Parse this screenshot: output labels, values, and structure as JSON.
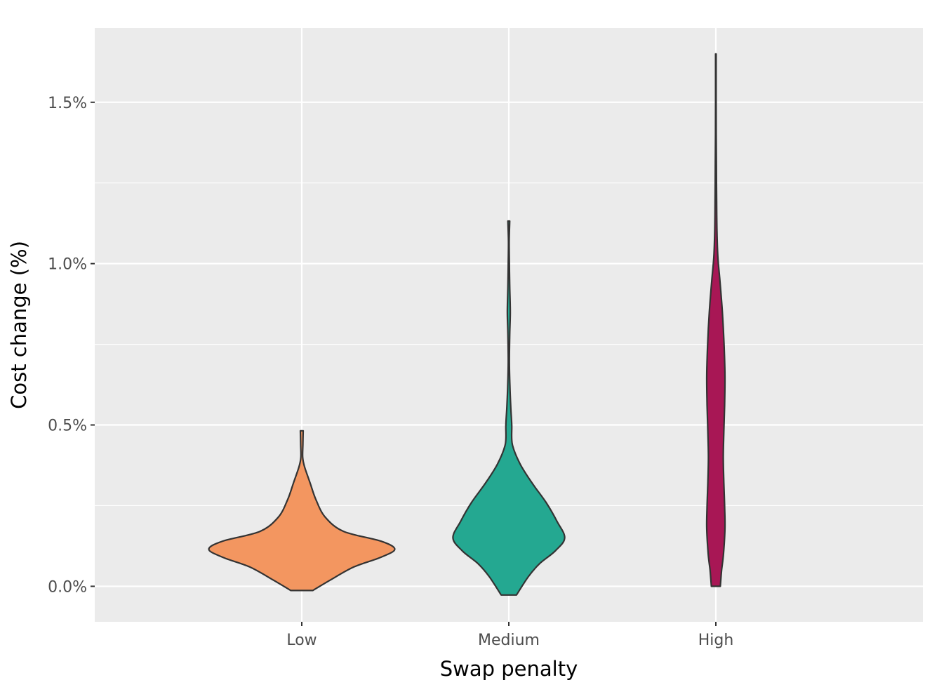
{
  "chart_data": {
    "type": "violin",
    "title": "",
    "xlabel": "Swap penalty",
    "ylabel": "Cost change (%)",
    "categories": [
      "Low",
      "Medium",
      "High"
    ],
    "y_ticks": [
      0.0,
      0.5,
      1.0,
      1.5
    ],
    "y_tick_labels": [
      "0.0%",
      "0.5%",
      "1.0%",
      "1.5%"
    ],
    "ylim": [
      -0.11,
      1.73
    ],
    "grid": true,
    "legend": "none",
    "panel_background": "#ebebeb",
    "series": [
      {
        "category": "Low",
        "color": "#f39660",
        "y_range": [
          -0.013,
          0.482
        ],
        "density_profile": [
          {
            "y": -0.013,
            "w": 0.118
          },
          {
            "y": 0.02,
            "w": 0.31
          },
          {
            "y": 0.06,
            "w": 0.56
          },
          {
            "y": 0.09,
            "w": 0.85
          },
          {
            "y": 0.115,
            "w": 0.998
          },
          {
            "y": 0.14,
            "w": 0.85
          },
          {
            "y": 0.17,
            "w": 0.45
          },
          {
            "y": 0.215,
            "w": 0.25
          },
          {
            "y": 0.27,
            "w": 0.15
          },
          {
            "y": 0.32,
            "w": 0.09
          },
          {
            "y": 0.37,
            "w": 0.03
          },
          {
            "y": 0.4,
            "w": 0.01
          },
          {
            "y": 0.44,
            "w": 0.012
          },
          {
            "y": 0.482,
            "w": 0.015
          }
        ]
      },
      {
        "category": "Medium",
        "color": "#24a891",
        "y_range": [
          -0.027,
          1.132
        ],
        "density_profile": [
          {
            "y": -0.027,
            "w": 0.082
          },
          {
            "y": 0.03,
            "w": 0.21
          },
          {
            "y": 0.07,
            "w": 0.33
          },
          {
            "y": 0.11,
            "w": 0.5
          },
          {
            "y": 0.15,
            "w": 0.6
          },
          {
            "y": 0.2,
            "w": 0.52
          },
          {
            "y": 0.26,
            "w": 0.4
          },
          {
            "y": 0.32,
            "w": 0.25
          },
          {
            "y": 0.38,
            "w": 0.12
          },
          {
            "y": 0.44,
            "w": 0.038
          },
          {
            "y": 0.5,
            "w": 0.032
          },
          {
            "y": 0.55,
            "w": 0.022
          },
          {
            "y": 0.62,
            "w": 0.012
          },
          {
            "y": 0.7,
            "w": 0.006
          },
          {
            "y": 0.78,
            "w": 0.01
          },
          {
            "y": 0.85,
            "w": 0.016
          },
          {
            "y": 0.93,
            "w": 0.01
          },
          {
            "y": 1.0,
            "w": 0.006
          },
          {
            "y": 1.07,
            "w": 0.004
          },
          {
            "y": 1.132,
            "w": 0.01
          }
        ]
      },
      {
        "category": "High",
        "color": "#a81755",
        "y_range": [
          0.0,
          1.65
        ],
        "density_profile": [
          {
            "y": 0.0,
            "w": 0.048
          },
          {
            "y": 0.05,
            "w": 0.062
          },
          {
            "y": 0.1,
            "w": 0.082
          },
          {
            "y": 0.18,
            "w": 0.098
          },
          {
            "y": 0.25,
            "w": 0.094
          },
          {
            "y": 0.32,
            "w": 0.086
          },
          {
            "y": 0.4,
            "w": 0.08
          },
          {
            "y": 0.48,
            "w": 0.086
          },
          {
            "y": 0.56,
            "w": 0.094
          },
          {
            "y": 0.65,
            "w": 0.098
          },
          {
            "y": 0.75,
            "w": 0.088
          },
          {
            "y": 0.85,
            "w": 0.07
          },
          {
            "y": 0.95,
            "w": 0.043
          },
          {
            "y": 1.02,
            "w": 0.022
          },
          {
            "y": 1.1,
            "w": 0.012
          },
          {
            "y": 1.2,
            "w": 0.008
          },
          {
            "y": 1.3,
            "w": 0.006
          },
          {
            "y": 1.4,
            "w": 0.004
          },
          {
            "y": 1.5,
            "w": 0.003
          },
          {
            "y": 1.65,
            "w": 0.003
          }
        ]
      }
    ]
  }
}
